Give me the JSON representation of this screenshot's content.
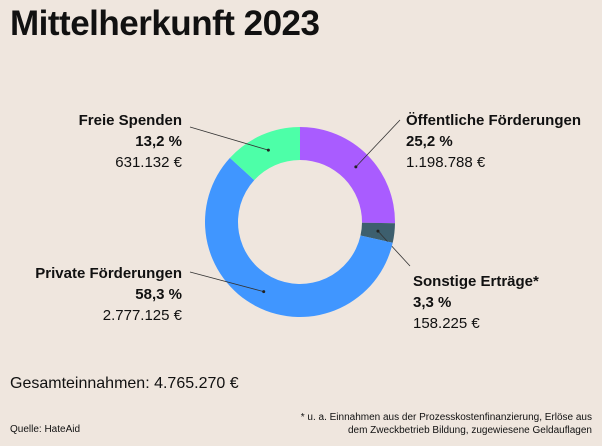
{
  "chart_data": {
    "type": "pie",
    "variant": "donut",
    "title": "Mittelherkunft 2023",
    "slices": [
      {
        "name": "Öffentliche Förderungen",
        "percent": 25.2,
        "percent_label": "25,2 %",
        "amount_label": "1.198.788 €",
        "color": "#a95cff"
      },
      {
        "name": "Sonstige Erträge*",
        "percent": 3.3,
        "percent_label": "3,3 %",
        "amount_label": "158.225 €",
        "color": "#3d5f6e"
      },
      {
        "name": "Private Förderungen",
        "percent": 58.3,
        "percent_label": "58,3 %",
        "amount_label": "2.777.125 €",
        "color": "#4096ff"
      },
      {
        "name": "Freie Spenden",
        "percent": 13.2,
        "percent_label": "13,2 %",
        "amount_label": "631.132 €",
        "color": "#4dffa8"
      }
    ],
    "total": "Gesamteinnahmen: 4.765.270 €",
    "source": "Quelle: HateAid",
    "footnote_1": "* u. a. Einnahmen aus der Prozesskostenfinanzierung, Erlöse aus",
    "footnote_2": "dem Zweckbetrieb Bildung, zugewiesene Geldauflagen"
  }
}
